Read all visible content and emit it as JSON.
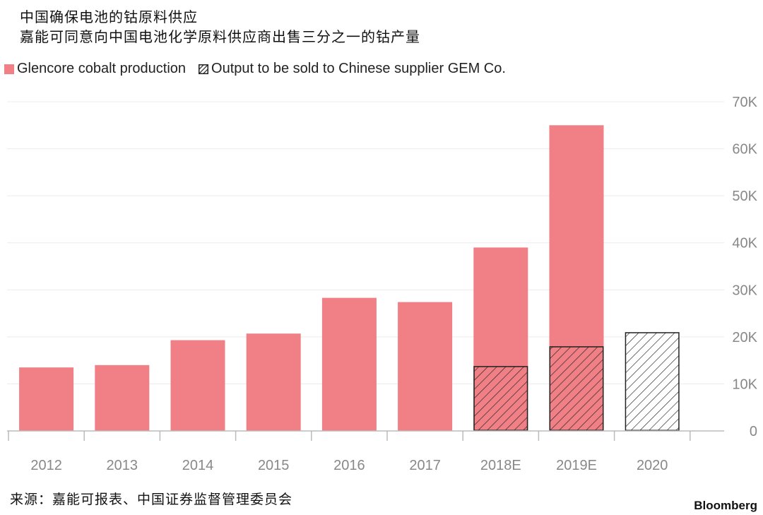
{
  "title_lines": [
    "中国确保电池的钴原料供应",
    "嘉能可同意向中国电池化学原料供应商出售三分之一的钴产量"
  ],
  "legend": {
    "production_label": "Glencore cobalt production",
    "output_label": "Output to be sold to Chinese supplier GEM Co."
  },
  "source": "来源：嘉能可报表、中国证券监督管理委员会",
  "brand": "Bloomberg",
  "colors": {
    "production": "#f07f86",
    "hatch": "#222222",
    "grid": "#ececec",
    "axis": "#bbbbbb"
  },
  "chart_data": {
    "type": "bar",
    "categories": [
      "2012",
      "2013",
      "2014",
      "2015",
      "2016",
      "2017",
      "2018E",
      "2019E",
      "2020"
    ],
    "series": [
      {
        "name": "Glencore cobalt production",
        "values": [
          13500,
          14000,
          19300,
          20700,
          28300,
          27400,
          39000,
          65000,
          null
        ]
      },
      {
        "name": "Output to be sold to Chinese supplier GEM Co.",
        "values": [
          null,
          null,
          null,
          null,
          null,
          null,
          13800,
          18000,
          21000
        ]
      }
    ],
    "ylim": [
      0,
      70000
    ],
    "yticks": [
      0,
      10000,
      20000,
      30000,
      40000,
      50000,
      60000,
      70000
    ],
    "ytick_labels": [
      "0",
      "10K",
      "20K",
      "30K",
      "40K",
      "50K",
      "60K",
      "70K"
    ],
    "y_axis_side": "right",
    "grid": true,
    "legend_position": "top-left"
  }
}
